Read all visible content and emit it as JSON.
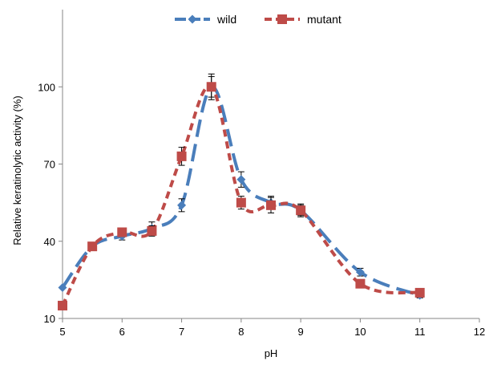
{
  "chart_data": {
    "type": "line",
    "xlabel": "pH",
    "ylabel": "Relative keratinolytic activity (%)",
    "xlim": [
      5,
      12
    ],
    "ylim": [
      10,
      130
    ],
    "x_ticks": [
      5,
      6,
      7,
      8,
      9,
      10,
      11,
      12
    ],
    "y_ticks": [
      10,
      40,
      70,
      100
    ],
    "legend_position": "top-center",
    "grid": false,
    "series": [
      {
        "name": "wild",
        "color": "#4a7ebb",
        "line_style": "long-dash",
        "marker": "diamond",
        "x": [
          5,
          5.5,
          6,
          6.5,
          7,
          7.5,
          8,
          8.5,
          9,
          10,
          11
        ],
        "y": [
          22,
          38,
          42,
          45,
          54,
          100,
          64,
          55,
          52,
          28,
          19
        ],
        "error": [
          0,
          1,
          1.5,
          2.5,
          2.5,
          4,
          3,
          2.5,
          2.5,
          1.5,
          1
        ]
      },
      {
        "name": "mutant",
        "color": "#be4b48",
        "line_style": "short-dash",
        "marker": "square",
        "x": [
          5,
          5.5,
          6,
          6.5,
          7,
          7.5,
          8,
          8.5,
          9,
          10,
          11
        ],
        "y": [
          15,
          38,
          43.5,
          44,
          73,
          100,
          55,
          54,
          52,
          23.5,
          20
        ],
        "error": [
          0,
          1,
          1,
          2,
          3.5,
          5,
          2.5,
          3,
          2,
          1,
          1
        ]
      }
    ]
  }
}
